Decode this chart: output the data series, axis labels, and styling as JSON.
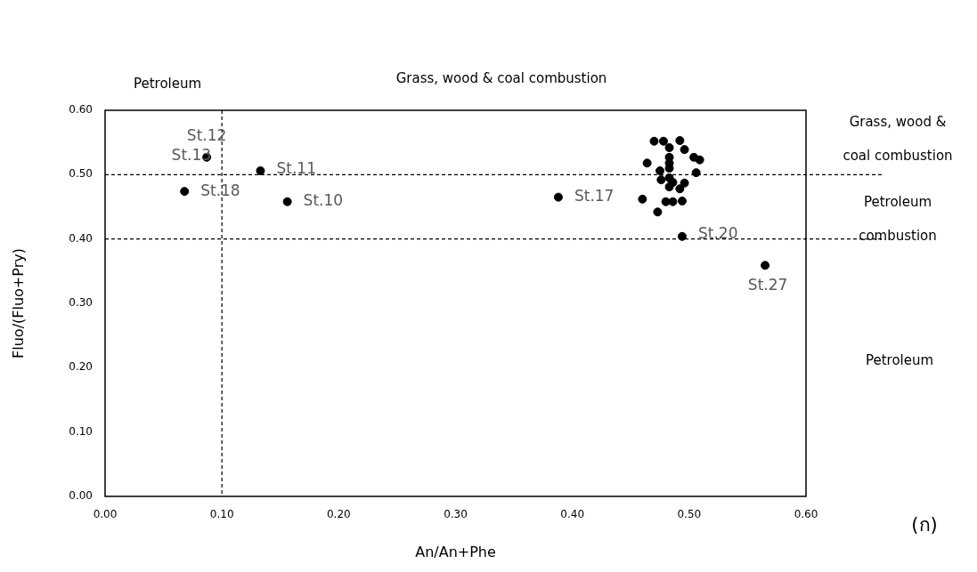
{
  "chart_data": {
    "type": "scatter",
    "xlabel": "An/An+Phe",
    "ylabel": "Fluo/(Fluo+Pry)",
    "x": [
      0.087,
      0.133,
      0.068,
      0.156,
      0.388,
      0.494,
      0.565,
      0.47,
      0.478,
      0.492,
      0.483,
      0.496,
      0.464,
      0.483,
      0.483,
      0.504,
      0.509,
      0.475,
      0.483,
      0.506,
      0.476,
      0.483,
      0.486,
      0.496,
      0.483,
      0.492,
      0.46,
      0.48,
      0.486,
      0.494,
      0.473
    ],
    "values": [
      0.527,
      0.506,
      0.474,
      0.458,
      0.465,
      0.404,
      0.359,
      0.552,
      0.552,
      0.553,
      0.542,
      0.539,
      0.518,
      0.527,
      0.518,
      0.527,
      0.523,
      0.506,
      0.51,
      0.503,
      0.492,
      0.495,
      0.488,
      0.487,
      0.481,
      0.478,
      0.462,
      0.458,
      0.458,
      0.459,
      0.442
    ],
    "color": "#000000",
    "marker": "circle",
    "xlim": [
      0,
      0.6
    ],
    "ylim": [
      0,
      0.6
    ],
    "xticks": [
      {
        "value": 0,
        "label": "0.00"
      },
      {
        "value": 0.1,
        "label": "0.10"
      },
      {
        "value": 0.2,
        "label": "0.20"
      },
      {
        "value": 0.3,
        "label": "0.30"
      },
      {
        "value": 0.4,
        "label": "0.40"
      },
      {
        "value": 0.5,
        "label": "0.50"
      },
      {
        "value": 0.6,
        "label": "0.60"
      }
    ],
    "yticks": [
      {
        "value": 0,
        "label": "0.00"
      },
      {
        "value": 0.1,
        "label": "0.10"
      },
      {
        "value": 0.2,
        "label": "0.20"
      },
      {
        "value": 0.3,
        "label": "0.30"
      },
      {
        "value": 0.4,
        "label": "0.40"
      },
      {
        "value": 0.5,
        "label": "0.50"
      },
      {
        "value": 0.6,
        "label": "0.60"
      }
    ],
    "grid": false,
    "legend": false,
    "ref_lines": [
      {
        "axis": "x",
        "value": 0.1,
        "line_style": "dashed"
      },
      {
        "axis": "y",
        "value": 0.5,
        "line_style": "dashed"
      },
      {
        "axis": "y",
        "value": 0.4,
        "line_style": "dashed"
      }
    ],
    "annotations": [
      {
        "text": "St.12",
        "x": 0.087,
        "y": 0.527
      },
      {
        "text": "St.13",
        "x": 0.087,
        "y": 0.527
      },
      {
        "text": "St.11",
        "x": 0.133,
        "y": 0.506
      },
      {
        "text": "St.18",
        "x": 0.068,
        "y": 0.474
      },
      {
        "text": "St.10",
        "x": 0.156,
        "y": 0.458
      },
      {
        "text": "St.17",
        "x": 0.388,
        "y": 0.465
      },
      {
        "text": "St.20",
        "x": 0.494,
        "y": 0.404
      },
      {
        "text": "St.27",
        "x": 0.565,
        "y": 0.359
      },
      "Petroleum",
      "Grass, wood & coal combustion",
      "Grass, wood & coal combustion",
      "Petroleum combustion",
      "Petroleum",
      "(ก)"
    ]
  }
}
